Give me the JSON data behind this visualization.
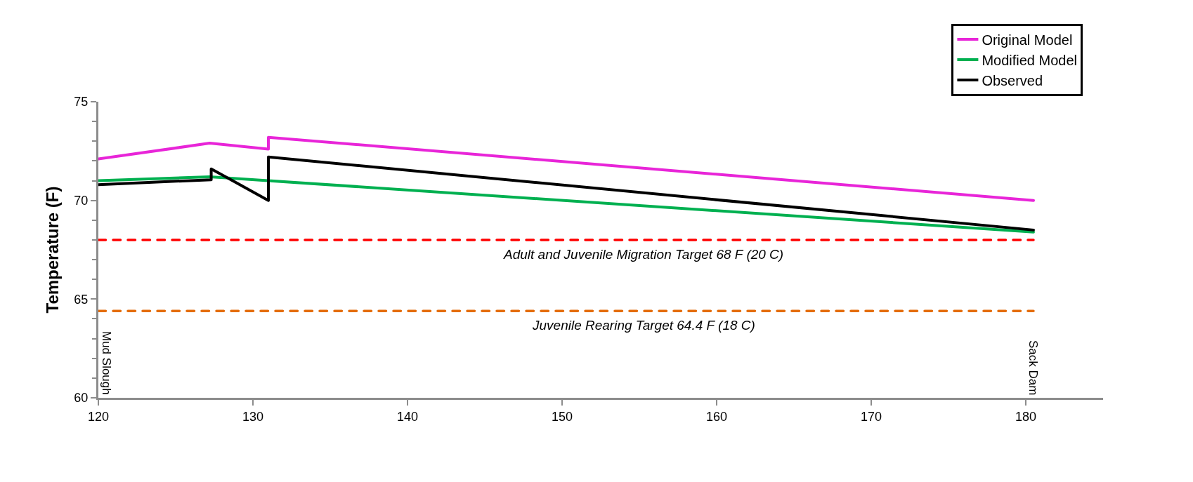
{
  "chart_data": {
    "type": "line",
    "ylabel": "Temperature (F)",
    "xlim": [
      120,
      185
    ],
    "xticks": [
      120,
      130,
      140,
      150,
      160,
      170,
      180
    ],
    "ylim": [
      60,
      75
    ],
    "yticks": [
      60,
      65,
      70,
      75
    ],
    "legend": "top right",
    "marker": "none",
    "line_style": "solid",
    "series": [
      {
        "name": "Original Model",
        "color": "#e825d8",
        "x": [
          120,
          127.2,
          131.0,
          131.0,
          180.5
        ],
        "values": [
          72.1,
          72.9,
          72.6,
          73.2,
          70.0
        ]
      },
      {
        "name": "Modified Model",
        "color": "#00b050",
        "x": [
          120,
          127.2,
          180.5
        ],
        "values": [
          71.0,
          71.2,
          68.4
        ]
      },
      {
        "name": "Observed",
        "color": "#000000",
        "x": [
          120,
          127.3,
          127.3,
          131.0,
          131.0,
          180.5
        ],
        "values": [
          70.8,
          71.05,
          71.6,
          70.0,
          72.2,
          68.5
        ]
      }
    ],
    "ref_lines": [
      {
        "axis": "y",
        "value": 68,
        "label": "Adult and Juvenile Migration Target 68 F (20 C)",
        "color": "#ff0000",
        "line_style": "dashed"
      },
      {
        "axis": "y",
        "value": 64.4,
        "label": "Juvenile Rearing Target 64.4 F (18 C)",
        "color": "#e46c0a",
        "line_style": "dashed"
      }
    ],
    "annotations": [
      "Mud Slough",
      "Sack Dam"
    ]
  }
}
